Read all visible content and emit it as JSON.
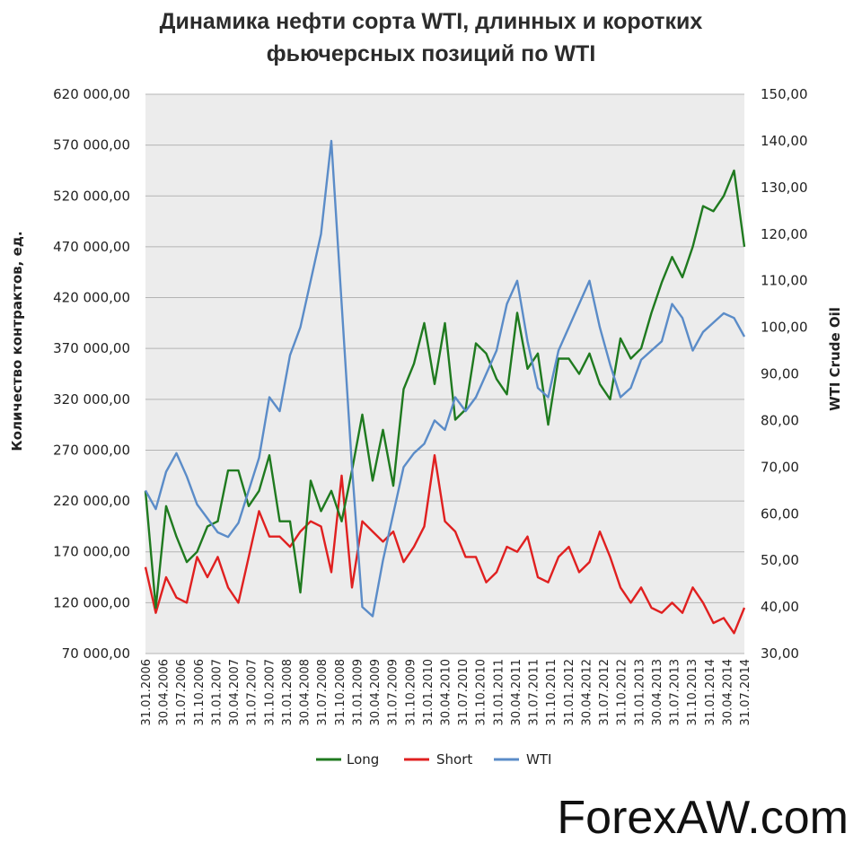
{
  "chart_data": {
    "type": "line",
    "title_line1": "Динамика нефти сорта WTI, длинных и коротких",
    "title_line2": "фьючерсных позиций по WTI",
    "ylabel_left": "Количество контрактов, ед.",
    "ylabel_right": "WTI Crude Oil",
    "ylim_left": [
      70000,
      620000
    ],
    "ylim_right": [
      30,
      150
    ],
    "y_ticks_left": [
      "620 000,00",
      "570 000,00",
      "520 000,00",
      "470 000,00",
      "420 000,00",
      "370 000,00",
      "320 000,00",
      "270 000,00",
      "220 000,00",
      "170 000,00",
      "120 000,00",
      "70 000,00"
    ],
    "y_ticks_right": [
      "150,00",
      "140,00",
      "130,00",
      "120,00",
      "110,00",
      "100,00",
      "90,00",
      "80,00",
      "70,00",
      "60,00",
      "50,00",
      "40,00",
      "30,00"
    ],
    "x_ticks": [
      "31.01.2006",
      "30.04.2006",
      "31.07.2006",
      "31.10.2006",
      "31.01.2007",
      "30.04.2007",
      "31.07.2007",
      "31.10.2007",
      "31.01.2008",
      "30.04.2008",
      "31.07.2008",
      "31.10.2008",
      "31.01.2009",
      "30.04.2009",
      "31.07.2009",
      "31.10.2009",
      "31.01.2010",
      "30.04.2010",
      "31.07.2010",
      "31.10.2010",
      "31.01.2011",
      "30.04.2011",
      "31.07.2011",
      "31.10.2011",
      "31.01.2012",
      "30.04.2012",
      "31.07.2012",
      "31.10.2012",
      "31.01.2013",
      "30.04.2013",
      "31.07.2013",
      "31.10.2013",
      "31.01.2014",
      "30.04.2014",
      "31.07.2014"
    ],
    "grid": "horizontal",
    "legend_position": "bottom",
    "series": [
      {
        "name": "Long",
        "axis": "left",
        "color": "#1f7a1f",
        "values": [
          230000,
          115000,
          215000,
          185000,
          160000,
          170000,
          195000,
          200000,
          250000,
          250000,
          215000,
          230000,
          265000,
          200000,
          200000,
          130000,
          240000,
          210000,
          230000,
          200000,
          250000,
          305000,
          240000,
          290000,
          235000,
          330000,
          355000,
          395000,
          335000,
          395000,
          300000,
          310000,
          375000,
          365000,
          340000,
          325000,
          405000,
          350000,
          365000,
          295000,
          360000,
          360000,
          345000,
          365000,
          335000,
          320000,
          380000,
          360000,
          370000,
          405000,
          435000,
          460000,
          440000,
          470000,
          510000,
          505000,
          520000,
          545000,
          470000
        ]
      },
      {
        "name": "Short",
        "axis": "left",
        "color": "#e02020",
        "values": [
          155000,
          110000,
          145000,
          125000,
          120000,
          165000,
          145000,
          165000,
          135000,
          120000,
          165000,
          210000,
          185000,
          185000,
          175000,
          190000,
          200000,
          195000,
          150000,
          245000,
          135000,
          200000,
          190000,
          180000,
          190000,
          160000,
          175000,
          195000,
          265000,
          200000,
          190000,
          165000,
          165000,
          140000,
          150000,
          175000,
          170000,
          185000,
          145000,
          140000,
          165000,
          175000,
          150000,
          160000,
          190000,
          165000,
          135000,
          120000,
          135000,
          115000,
          110000,
          120000,
          110000,
          135000,
          120000,
          100000,
          105000,
          90000,
          115000
        ]
      },
      {
        "name": "WTI",
        "axis": "right",
        "color": "#5b8cc8",
        "values": [
          65,
          61,
          69,
          73,
          68,
          62,
          59,
          56,
          55,
          58,
          65,
          72,
          85,
          82,
          94,
          100,
          110,
          120,
          140,
          105,
          70,
          40,
          38,
          50,
          60,
          70,
          73,
          75,
          80,
          78,
          85,
          82,
          85,
          90,
          95,
          105,
          110,
          97,
          87,
          85,
          95,
          100,
          105,
          110,
          100,
          92,
          85,
          87,
          93,
          95,
          97,
          105,
          102,
          95,
          99,
          101,
          103,
          102,
          98
        ]
      }
    ]
  },
  "legend": {
    "long": "Long",
    "short": "Short",
    "wti": "WTI"
  },
  "watermark": "ForexAW.com"
}
